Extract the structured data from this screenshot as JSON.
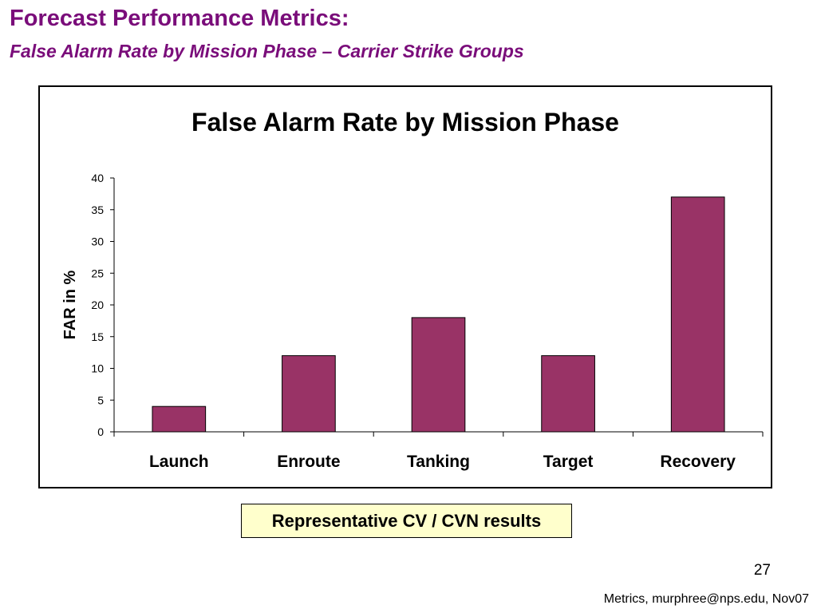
{
  "slide": {
    "title": "Forecast Performance Metrics:",
    "subtitle": "False Alarm Rate by Mission Phase – Carrier Strike Groups",
    "note": "Representative CV / CVN results",
    "page_number": "27",
    "footer": "Metrics, murphree@nps.edu, Nov07"
  },
  "chart_data": {
    "type": "bar",
    "title": "False Alarm Rate by Mission Phase",
    "xlabel": "",
    "ylabel": "FAR in %",
    "categories": [
      "Launch",
      "Enroute",
      "Tanking",
      "Target",
      "Recovery"
    ],
    "values": [
      4,
      12,
      18,
      12,
      37
    ],
    "ylim": [
      0,
      40
    ],
    "yticks": [
      0,
      5,
      10,
      15,
      20,
      25,
      30,
      35,
      40
    ],
    "grid": false,
    "legend": "none",
    "bar_color": "#993366",
    "bar_edge_color": "#000000"
  },
  "colors": {
    "title": "#7a0d7a",
    "note_background": "#ffffcc"
  }
}
